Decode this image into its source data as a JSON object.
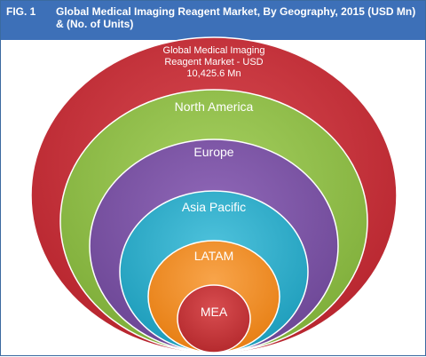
{
  "header": {
    "fig_label": "FIG. 1",
    "title": "Global Medical Imaging Reagent Market, By Geography, 2015 (USD Mn) & (No. of Units)"
  },
  "diagram": {
    "outer": {
      "line1": "Global Medical Imaging",
      "line2": "Reagent Market - USD",
      "line3": "10,425.6 Mn"
    },
    "regions": [
      "North America",
      "Europe",
      "Asia Pacific",
      "LATAM",
      "MEA"
    ]
  },
  "colors": {
    "header_bg": "#3d70b8",
    "global": "#c0303a",
    "north_america": "#92c04a",
    "europe": "#7d55a3",
    "asia_pacific": "#2fb0cc",
    "latam": "#f39128",
    "mea": "#c43236"
  }
}
